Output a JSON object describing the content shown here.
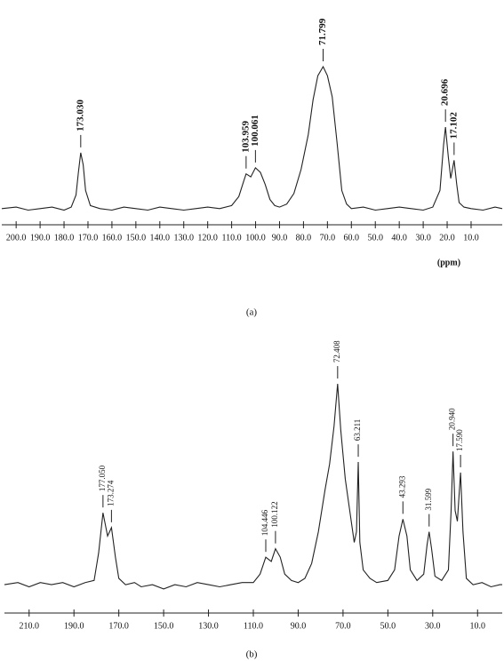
{
  "chart_data": [
    {
      "type": "line",
      "caption": "(a)",
      "xlabel": "(ppm)",
      "color": "#222222",
      "xlim": [
        206,
        -3
      ],
      "ylim": [
        0,
        100
      ],
      "xticks": [
        {
          "value": 200,
          "label": "200.0"
        },
        {
          "value": 190,
          "label": "190.0"
        },
        {
          "value": 180,
          "label": "180.0"
        },
        {
          "value": 170,
          "label": "170.0"
        },
        {
          "value": 160,
          "label": "160.0"
        },
        {
          "value": 150,
          "label": "150.0"
        },
        {
          "value": 140,
          "label": "140.0"
        },
        {
          "value": 130,
          "label": "130.0"
        },
        {
          "value": 120,
          "label": "120.0"
        },
        {
          "value": 110,
          "label": "110.0"
        },
        {
          "value": 100,
          "label": "100.0"
        },
        {
          "value": 90,
          "label": "90.0"
        },
        {
          "value": 80,
          "label": "80.0"
        },
        {
          "value": 70,
          "label": "70.0"
        },
        {
          "value": 60,
          "label": "60.0"
        },
        {
          "value": 50,
          "label": "50.0"
        },
        {
          "value": 40,
          "label": "40.0"
        },
        {
          "value": 30,
          "label": "30.0"
        },
        {
          "value": 20,
          "label": "20.0"
        },
        {
          "value": 10,
          "label": "10.0"
        }
      ],
      "x": [
        206,
        200,
        195,
        190,
        185,
        180,
        177,
        175,
        174,
        173.03,
        172,
        171,
        169,
        165,
        160,
        155,
        150,
        145,
        140,
        135,
        130,
        125,
        120,
        115,
        110,
        107,
        105,
        103.96,
        102,
        100.06,
        98,
        96,
        94,
        92,
        90,
        87,
        84,
        81,
        78,
        76,
        74,
        71.8,
        70,
        68,
        66,
        64,
        62,
        60,
        55,
        50,
        45,
        40,
        35,
        30,
        26,
        23,
        21.5,
        20.7,
        19.5,
        18.5,
        17.1,
        16,
        15,
        13,
        10,
        5,
        0,
        -3
      ],
      "values": [
        6,
        7,
        5,
        6,
        7,
        5,
        7,
        15,
        30,
        43,
        35,
        18,
        8,
        6,
        5,
        7,
        6,
        5,
        7,
        6,
        5,
        6,
        7,
        6,
        8,
        14,
        24,
        29,
        27,
        33,
        30,
        22,
        12,
        8,
        7,
        9,
        16,
        32,
        55,
        78,
        94,
        100,
        94,
        80,
        50,
        18,
        9,
        6,
        7,
        5,
        6,
        7,
        6,
        5,
        7,
        18,
        48,
        60,
        40,
        26,
        38,
        22,
        10,
        7,
        6,
        5,
        7,
        6
      ],
      "annotations": [
        {
          "x": 173.03,
          "label": "173.030"
        },
        {
          "x": 103.959,
          "label": "103.959"
        },
        {
          "x": 100.061,
          "label": "100.061"
        },
        {
          "x": 71.799,
          "label": "71.799"
        },
        {
          "x": 20.696,
          "label": "20.696"
        },
        {
          "x": 17.102,
          "label": "17.102"
        }
      ]
    },
    {
      "type": "line",
      "caption": "(b)",
      "color": "#222222",
      "xlim": [
        221,
        -1
      ],
      "ylim": [
        0,
        100
      ],
      "xticks": [
        {
          "value": 210,
          "label": "210.0"
        },
        {
          "value": 190,
          "label": "190.0"
        },
        {
          "value": 170,
          "label": "170.0"
        },
        {
          "value": 150,
          "label": "150.0"
        },
        {
          "value": 130,
          "label": "130.0"
        },
        {
          "value": 110,
          "label": "110.0"
        },
        {
          "value": 90,
          "label": "90.0"
        },
        {
          "value": 70,
          "label": "70.0"
        },
        {
          "value": 50,
          "label": "50.0"
        },
        {
          "value": 30,
          "label": "30.0"
        },
        {
          "value": 10,
          "label": "10.0"
        }
      ],
      "x": [
        221,
        215,
        210,
        205,
        200,
        195,
        190,
        185,
        181,
        179,
        177.05,
        175,
        173.27,
        171.5,
        170,
        167,
        163,
        160,
        155,
        150,
        145,
        140,
        135,
        130,
        125,
        120,
        115,
        110,
        107,
        104.45,
        102,
        100.12,
        98,
        96,
        93,
        90,
        87,
        84,
        81,
        78,
        76,
        74,
        72.41,
        71,
        69,
        67,
        65,
        64,
        63.21,
        62.5,
        61,
        58,
        55,
        50,
        47,
        45,
        43.29,
        41.5,
        40,
        37,
        34,
        32.5,
        31.6,
        30.5,
        29,
        26,
        23,
        21.8,
        20.94,
        20,
        19,
        17.59,
        16.5,
        15,
        12,
        8,
        4,
        0,
        -1
      ],
      "values": [
        5,
        6,
        4,
        6,
        5,
        6,
        4,
        6,
        7,
        20,
        39,
        28,
        32,
        18,
        8,
        5,
        6,
        4,
        5,
        3,
        5,
        4,
        6,
        5,
        4,
        5,
        6,
        6,
        10,
        18,
        16,
        22,
        18,
        10,
        7,
        6,
        8,
        15,
        30,
        50,
        62,
        80,
        100,
        78,
        55,
        40,
        25,
        30,
        63,
        25,
        12,
        8,
        6,
        7,
        12,
        28,
        36,
        28,
        12,
        7,
        10,
        24,
        30,
        22,
        9,
        7,
        12,
        40,
        68,
        40,
        35,
        58,
        30,
        8,
        5,
        6,
        4,
        5,
        5
      ],
      "annotations": [
        {
          "x": 177.05,
          "label": "177.050"
        },
        {
          "x": 173.274,
          "label": "173.274"
        },
        {
          "x": 104.446,
          "label": "104.446"
        },
        {
          "x": 100.122,
          "label": "100.122"
        },
        {
          "x": 72.408,
          "label": "72.408"
        },
        {
          "x": 63.211,
          "label": "63.211"
        },
        {
          "x": 43.293,
          "label": "43.293"
        },
        {
          "x": 31.599,
          "label": "31.599"
        },
        {
          "x": 20.94,
          "label": "20.940"
        },
        {
          "x": 17.59,
          "label": "17.590"
        }
      ]
    }
  ]
}
